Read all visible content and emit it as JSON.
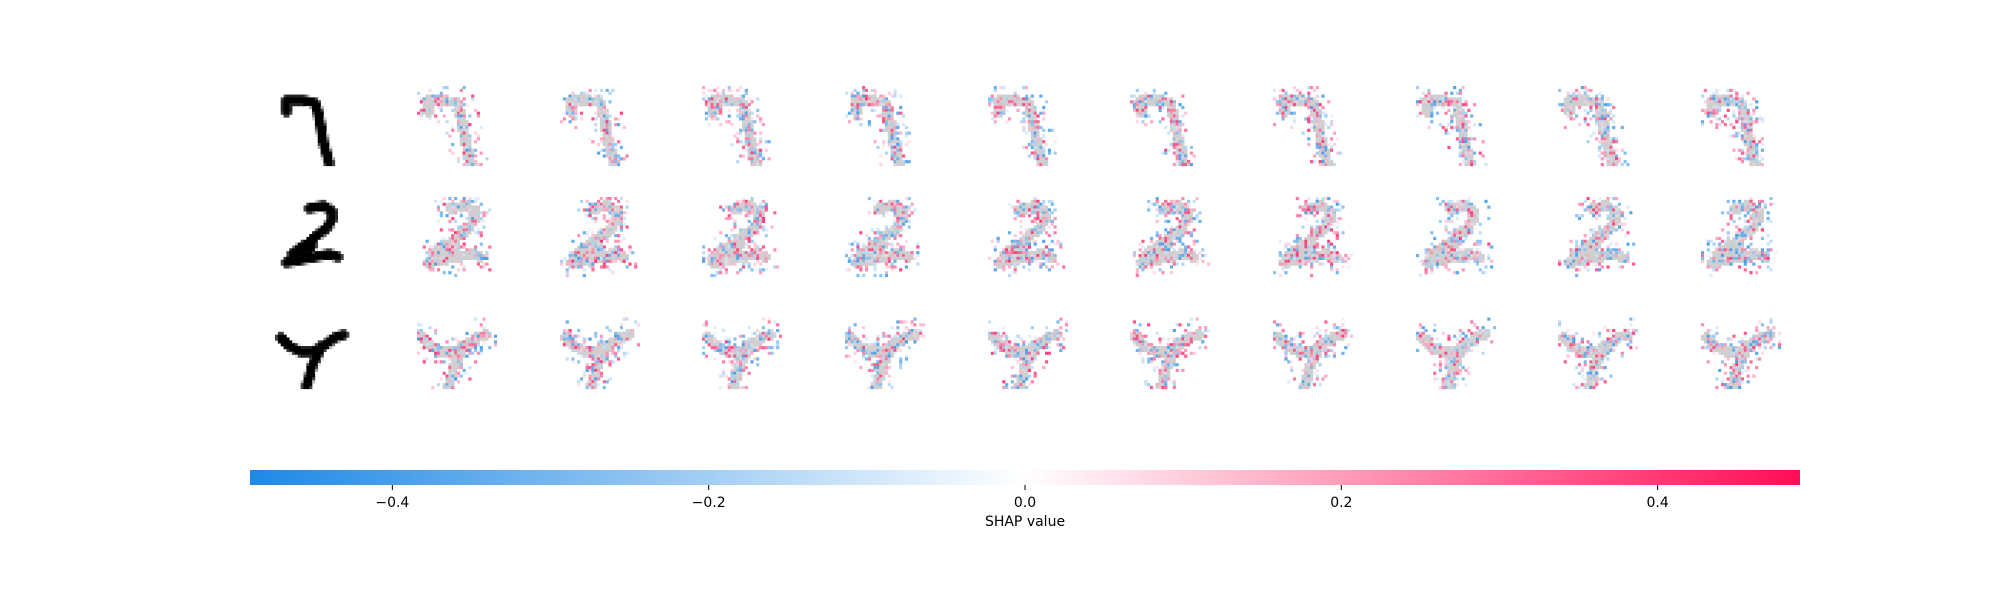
{
  "chart_data": {
    "type": "heatmap",
    "title": "",
    "rows": [
      {
        "input_digit": "7"
      },
      {
        "input_digit": "2"
      },
      {
        "input_digit": "7"
      }
    ],
    "output_columns": 10,
    "colorbar": {
      "label": "SHAP value",
      "range": [
        -0.49,
        0.49
      ],
      "ticks": [
        -0.4,
        -0.2,
        0.0,
        0.2,
        0.4
      ],
      "tick_labels": [
        "−0.4",
        "−0.2",
        "0.0",
        "0.2",
        "0.4"
      ],
      "negative_color": "#1e88e5",
      "positive_color": "#ff0d57",
      "zero_color": "#ffffff"
    }
  }
}
